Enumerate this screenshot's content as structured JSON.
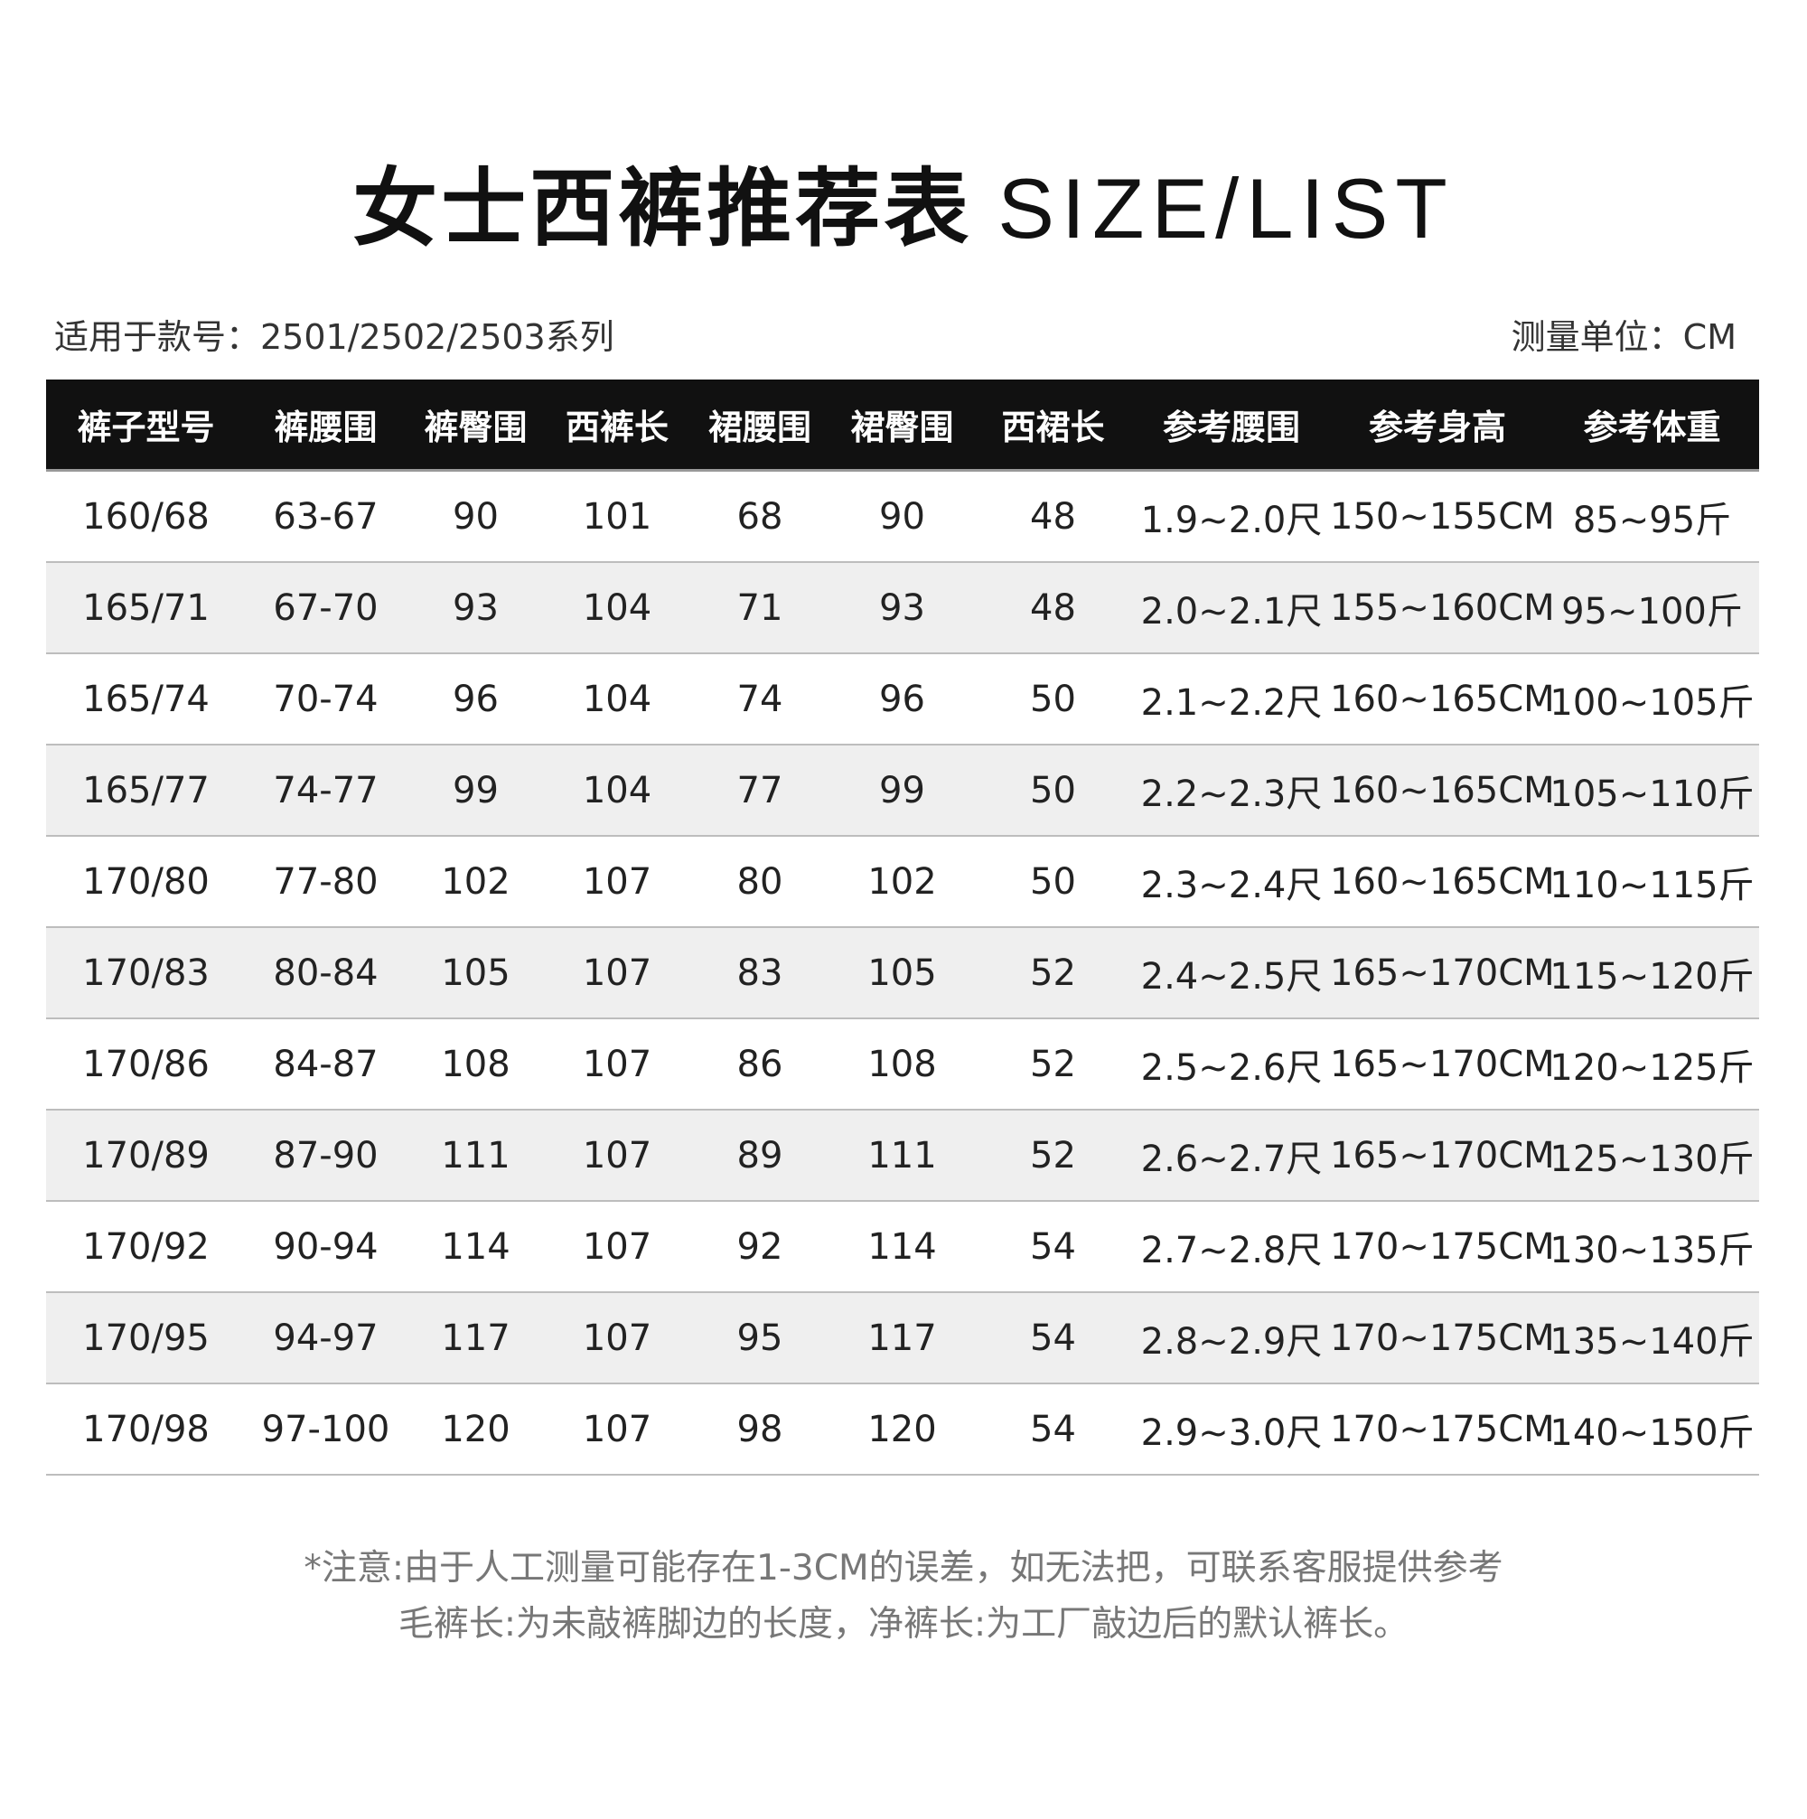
{
  "title": {
    "cn": "女士西裤推荐表",
    "en": "SIZE/LIST"
  },
  "applicable": "适用于款号：2501/2502/2503系列",
  "unit": "测量单位：CM",
  "table": {
    "headers": [
      "裤子型号",
      "裤腰围",
      "裤臀围",
      "西裤长",
      "裙腰围",
      "裙臀围",
      "西裙长",
      "参考腰围",
      "参考身高",
      "参考体重"
    ],
    "rows": [
      [
        "160/68",
        "63-67",
        "90",
        "101",
        "68",
        "90",
        "48",
        "1.9~2.0尺",
        "150~155CM",
        "85~95斤"
      ],
      [
        "165/71",
        "67-70",
        "93",
        "104",
        "71",
        "93",
        "48",
        "2.0~2.1尺",
        "155~160CM",
        "95~100斤"
      ],
      [
        "165/74",
        "70-74",
        "96",
        "104",
        "74",
        "96",
        "50",
        "2.1~2.2尺",
        "160~165CM",
        "100~105斤"
      ],
      [
        "165/77",
        "74-77",
        "99",
        "104",
        "77",
        "99",
        "50",
        "2.2~2.3尺",
        "160~165CM",
        "105~110斤"
      ],
      [
        "170/80",
        "77-80",
        "102",
        "107",
        "80",
        "102",
        "50",
        "2.3~2.4尺",
        "160~165CM",
        "110~115斤"
      ],
      [
        "170/83",
        "80-84",
        "105",
        "107",
        "83",
        "105",
        "52",
        "2.4~2.5尺",
        "165~170CM",
        "115~120斤"
      ],
      [
        "170/86",
        "84-87",
        "108",
        "107",
        "86",
        "108",
        "52",
        "2.5~2.6尺",
        "165~170CM",
        "120~125斤"
      ],
      [
        "170/89",
        "87-90",
        "111",
        "107",
        "89",
        "111",
        "52",
        "2.6~2.7尺",
        "165~170CM",
        "125~130斤"
      ],
      [
        "170/92",
        "90-94",
        "114",
        "107",
        "92",
        "114",
        "54",
        "2.7~2.8尺",
        "170~175CM",
        "130~135斤"
      ],
      [
        "170/95",
        "94-97",
        "117",
        "107",
        "95",
        "117",
        "54",
        "2.8~2.9尺",
        "170~175CM",
        "135~140斤"
      ],
      [
        "170/98",
        "97-100",
        "120",
        "107",
        "98",
        "120",
        "54",
        "2.9~3.0尺",
        "170~175CM",
        "140~150斤"
      ]
    ]
  },
  "notes": [
    "*注意:由于人工测量可能存在1-3CM的误差，如无法把，可联系客服提供参考",
    "毛裤长:为未敲裤脚边的长度，净裤长:为工厂敲边后的默认裤长。"
  ],
  "colors": {
    "header_bg": "#111111",
    "alt_row_bg": "#efefef",
    "note_text": "#777777"
  }
}
